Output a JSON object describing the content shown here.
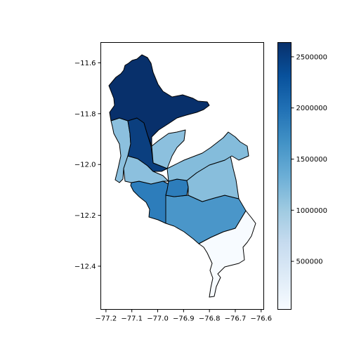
{
  "chart_data": {
    "type": "choropleth",
    "title": "",
    "xlabel": "",
    "ylabel": "",
    "colormap": "Blues",
    "x_ticks": [
      -77.2,
      -77.1,
      -77.0,
      -76.9,
      -76.8,
      -76.7,
      -76.6
    ],
    "x_tick_labels": [
      "−77.2",
      "−77.1",
      "−77.0",
      "−76.9",
      "−76.8",
      "−76.7",
      "−76.6"
    ],
    "y_ticks": [
      -11.6,
      -11.8,
      -12.0,
      -12.2,
      -12.4
    ],
    "y_tick_labels": [
      "−11.6",
      "−11.8",
      "−12.0",
      "−12.2",
      "−12.4"
    ],
    "xlim": [
      -77.22,
      -76.59
    ],
    "ylim": [
      -12.57,
      -11.52
    ],
    "colorbar": {
      "range": [
        30000,
        2640000
      ],
      "ticks": [
        500000,
        1000000,
        1500000,
        2000000,
        2500000
      ],
      "tick_labels": [
        "500000",
        "1000000",
        "1500000",
        "2000000",
        "2500000"
      ]
    },
    "regions": [
      {
        "value": 2600000,
        "color": "#08306b"
      },
      {
        "value": 2450000,
        "color": "#0b3f7f"
      },
      {
        "value": 950000,
        "color": "#8cc0de"
      },
      {
        "value": 1000000,
        "color": "#88bedc"
      },
      {
        "value": 1050000,
        "color": "#84bcdb"
      },
      {
        "value": 1650000,
        "color": "#4a96c9"
      },
      {
        "value": 1900000,
        "color": "#2d7dbb"
      },
      {
        "value": 20000,
        "color": "#f7fbff"
      }
    ],
    "x": [],
    "values": []
  }
}
